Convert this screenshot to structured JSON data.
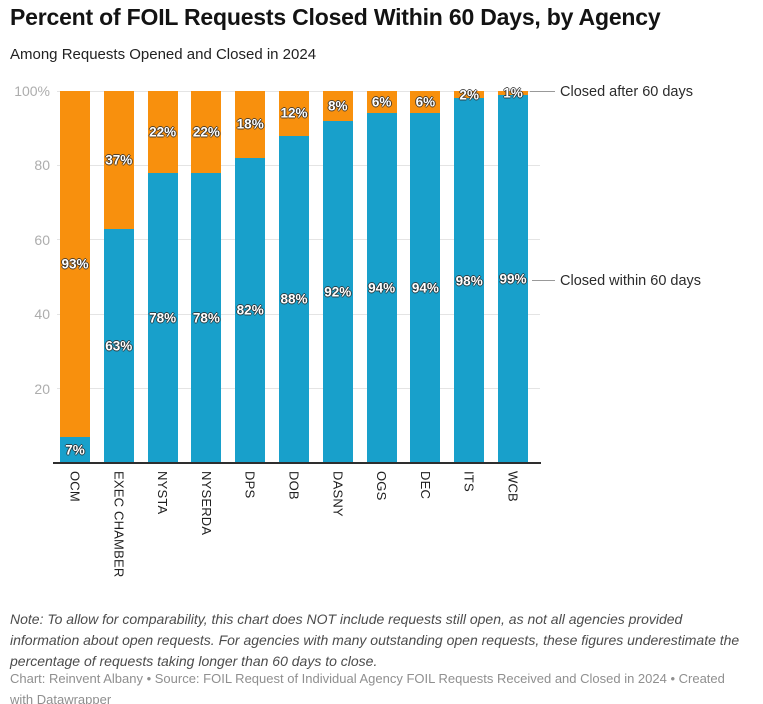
{
  "header": {
    "title": "Percent of FOIL Requests Closed Within 60 Days, by Agency",
    "subtitle": "Among Requests Opened and Closed in 2024"
  },
  "chart_data": {
    "type": "bar",
    "stacked": true,
    "stack_unit": "percent",
    "orientation": "vertical",
    "categories": [
      "OCM",
      "EXEC CHAMBER",
      "NYSTA",
      "NYSERDA",
      "DPS",
      "DOB",
      "DASNY",
      "OGS",
      "DEC",
      "ITS",
      "WCB"
    ],
    "series": [
      {
        "name": "Closed within 60 days",
        "color": "#18a0cb",
        "values": [
          7,
          63,
          78,
          78,
          82,
          88,
          92,
          94,
          94,
          98,
          99
        ]
      },
      {
        "name": "Closed after 60 days",
        "color": "#f8900d",
        "values": [
          93,
          37,
          22,
          22,
          18,
          12,
          8,
          6,
          6,
          2,
          1
        ]
      }
    ],
    "value_suffix": "%",
    "ylim": [
      0,
      100
    ],
    "yticks": [
      {
        "value": 20,
        "label": "20"
      },
      {
        "value": 40,
        "label": "40"
      },
      {
        "value": 60,
        "label": "60"
      },
      {
        "value": 80,
        "label": "80"
      },
      {
        "value": 100,
        "label": "100%"
      }
    ],
    "grid": true,
    "legend_position": "right-side annotations with connector lines"
  },
  "footer": {
    "note": "Note: To allow for comparability, this chart does NOT include requests still open, as not all agencies provided information about open requests. For agencies with many outstanding open requests, these figures underestimate the percentage of requests taking longer than 60 days to close.",
    "credits": "Chart: Reinvent Albany • Source: FOIL Request of Individual Agency FOIL Requests Received and Closed in 2024 • Created with Datawrapper"
  },
  "colors": {
    "within": "#18a0cb",
    "after": "#f8900d",
    "axis_line": "#2e2e2e",
    "gridline": "#e4e4e4",
    "tick_label": "#adadad",
    "annotation_line": "#999999"
  }
}
